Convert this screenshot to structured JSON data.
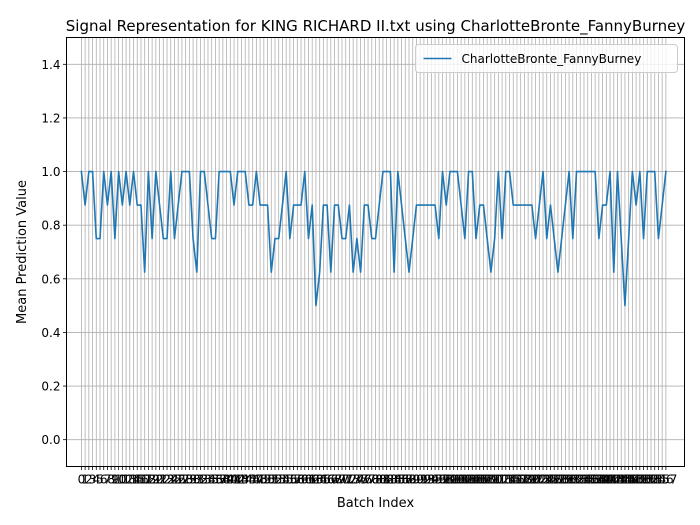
{
  "chart_data": {
    "type": "line",
    "title": "Signal Representation for KING RICHARD II.txt using CharlotteBronte_FannyBurney",
    "xlabel": "Batch Index",
    "ylabel": "Mean Prediction Value",
    "xlim": [
      -4.0,
      162.0
    ],
    "ylim": [
      -0.1,
      1.5
    ],
    "yticks": [
      0.0,
      0.2,
      0.4,
      0.6,
      0.8,
      1.0,
      1.2,
      1.4
    ],
    "grid": true,
    "legend_position": "upper right",
    "series": [
      {
        "name": "CharlotteBronte_FannyBurney",
        "color": "#1f77b4",
        "values": [
          1.0,
          0.875,
          1.0,
          1.0,
          0.75,
          0.75,
          1.0,
          0.875,
          1.0,
          0.75,
          1.0,
          0.875,
          1.0,
          0.875,
          1.0,
          0.875,
          0.875,
          0.625,
          1.0,
          0.75,
          1.0,
          0.875,
          0.75,
          0.75,
          1.0,
          0.75,
          0.875,
          1.0,
          1.0,
          1.0,
          0.75,
          0.625,
          1.0,
          1.0,
          0.875,
          0.75,
          0.75,
          1.0,
          1.0,
          1.0,
          1.0,
          0.875,
          1.0,
          1.0,
          1.0,
          0.875,
          0.875,
          1.0,
          0.875,
          0.875,
          0.875,
          0.625,
          0.75,
          0.75,
          0.875,
          1.0,
          0.75,
          0.875,
          0.875,
          0.875,
          1.0,
          0.75,
          0.875,
          0.5,
          0.625,
          0.875,
          0.875,
          0.625,
          0.875,
          0.875,
          0.75,
          0.75,
          0.875,
          0.625,
          0.75,
          0.625,
          0.875,
          0.875,
          0.75,
          0.75,
          0.875,
          1.0,
          1.0,
          1.0,
          0.625,
          1.0,
          0.875,
          0.75,
          0.625,
          0.75,
          0.875,
          0.875,
          0.875,
          0.875,
          0.875,
          0.875,
          0.75,
          1.0,
          0.875,
          1.0,
          1.0,
          1.0,
          0.875,
          0.75,
          1.0,
          1.0,
          0.75,
          0.875,
          0.875,
          0.75,
          0.625,
          0.75,
          1.0,
          0.75,
          1.0,
          1.0,
          0.875,
          0.875,
          0.875,
          0.875,
          0.875,
          0.875,
          0.75,
          0.875,
          1.0,
          0.75,
          0.875,
          0.75,
          0.625,
          0.75,
          0.875,
          1.0,
          0.75,
          1.0,
          1.0,
          1.0,
          1.0,
          1.0,
          1.0,
          0.75,
          0.875,
          0.875,
          1.0,
          0.625,
          1.0,
          0.75,
          0.5,
          0.75,
          1.0,
          0.875,
          1.0,
          0.75,
          1.0,
          1.0,
          1.0,
          0.75,
          0.875,
          1.0
        ]
      }
    ]
  }
}
